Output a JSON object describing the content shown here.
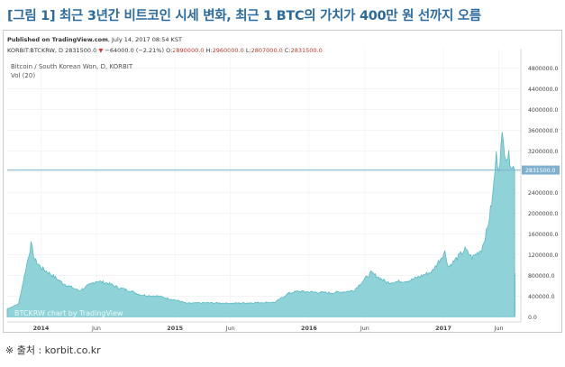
{
  "caption": "[그림 1] 최근 3년간 비트코인 시세 변화, 최근 1 BTC의 가치가 400만 원 선까지 오름",
  "published": {
    "prefix": "Published on TradingView.com",
    "date": ", July 14, 2017 08:54 KST"
  },
  "quote": {
    "symbol": "KORBIT:BTCKRW, D",
    "last": "2831500.0",
    "change": "−64000.0 (−2.21%)",
    "o_label": "O:",
    "o": "2890000.0",
    "h_label": "H:",
    "h": "2960000.0",
    "l_label": "L:",
    "l": "2807000.0",
    "c_label": "C:",
    "c": "2831500.0"
  },
  "source": "※ 출처 : korbit.co.kr",
  "colors": {
    "area": "#8fd3d8",
    "area_stroke": "#5bb8c2",
    "volume": "#4fb0bc",
    "price_line": "#7fb1cf",
    "last_badge": "#7fb1cf",
    "caption": "#2c6b9e"
  },
  "chart_data": {
    "type": "area",
    "title": "Bitcoin / South Korean Won, D, KORBIT",
    "subtitle": "Vol (20)",
    "watermark": "BTCKRW chart by TradingView",
    "ylim": [
      -100000,
      5000000
    ],
    "yticks": [
      0,
      400000,
      800000,
      1200000,
      1600000,
      2000000,
      2400000,
      2800000,
      3200000,
      3600000,
      4000000,
      4400000,
      4800000
    ],
    "ytick_labels": [
      "0.0",
      "400000.0",
      "800000.0",
      "1200000.0",
      "1600000.0",
      "2000000.0",
      "2400000.0",
      "2800000.0",
      "3200000.0",
      "3600000.0",
      "4000000.0",
      "4400000.0",
      "4800000.0"
    ],
    "last_value": 2831500,
    "last_label": "2831500.0",
    "xlim": [
      "2013-10-01",
      "2017-07-31"
    ],
    "xticks": [
      {
        "date": "2014-01-01",
        "label": "2014"
      },
      {
        "date": "2014-06-01",
        "label": "Jun"
      },
      {
        "date": "2015-01-01",
        "label": "2015"
      },
      {
        "date": "2015-06-01",
        "label": "Jun"
      },
      {
        "date": "2016-01-01",
        "label": "2016"
      },
      {
        "date": "2016-06-01",
        "label": "Jun"
      },
      {
        "date": "2017-01-01",
        "label": "2017"
      },
      {
        "date": "2017-06-01",
        "label": "Jun"
      }
    ],
    "series": [
      {
        "x": [
          "2013-10-01",
          "2013-11-01",
          "2013-11-20",
          "2013-12-05",
          "2013-12-15",
          "2014-01-01",
          "2014-02-01",
          "2014-03-01",
          "2014-04-15",
          "2014-06-01",
          "2014-07-01",
          "2014-08-01",
          "2014-09-01",
          "2014-10-01",
          "2014-11-15",
          "2015-01-15",
          "2015-02-01",
          "2015-04-01",
          "2015-06-01",
          "2015-08-01",
          "2015-10-01",
          "2015-11-05",
          "2015-12-01",
          "2016-01-01",
          "2016-03-01",
          "2016-05-01",
          "2016-06-18",
          "2016-08-01",
          "2016-10-01",
          "2016-12-01",
          "2017-01-05",
          "2017-01-15",
          "2017-03-01",
          "2017-03-20",
          "2017-04-15",
          "2017-05-01",
          "2017-05-15",
          "2017-05-25",
          "2017-06-01",
          "2017-06-10",
          "2017-06-20",
          "2017-07-01",
          "2017-07-14"
        ],
        "values": [
          150000,
          250000,
          900000,
          1400000,
          1100000,
          950000,
          800000,
          650000,
          500000,
          690000,
          650000,
          560000,
          500000,
          420000,
          400000,
          300000,
          260000,
          270000,
          260000,
          270000,
          280000,
          450000,
          490000,
          480000,
          460000,
          500000,
          850000,
          660000,
          700000,
          870000,
          1250000,
          960000,
          1300000,
          1140000,
          1300000,
          1700000,
          2300000,
          3100000,
          2900000,
          3450000,
          3150000,
          3050000,
          2831500
        ]
      }
    ]
  }
}
